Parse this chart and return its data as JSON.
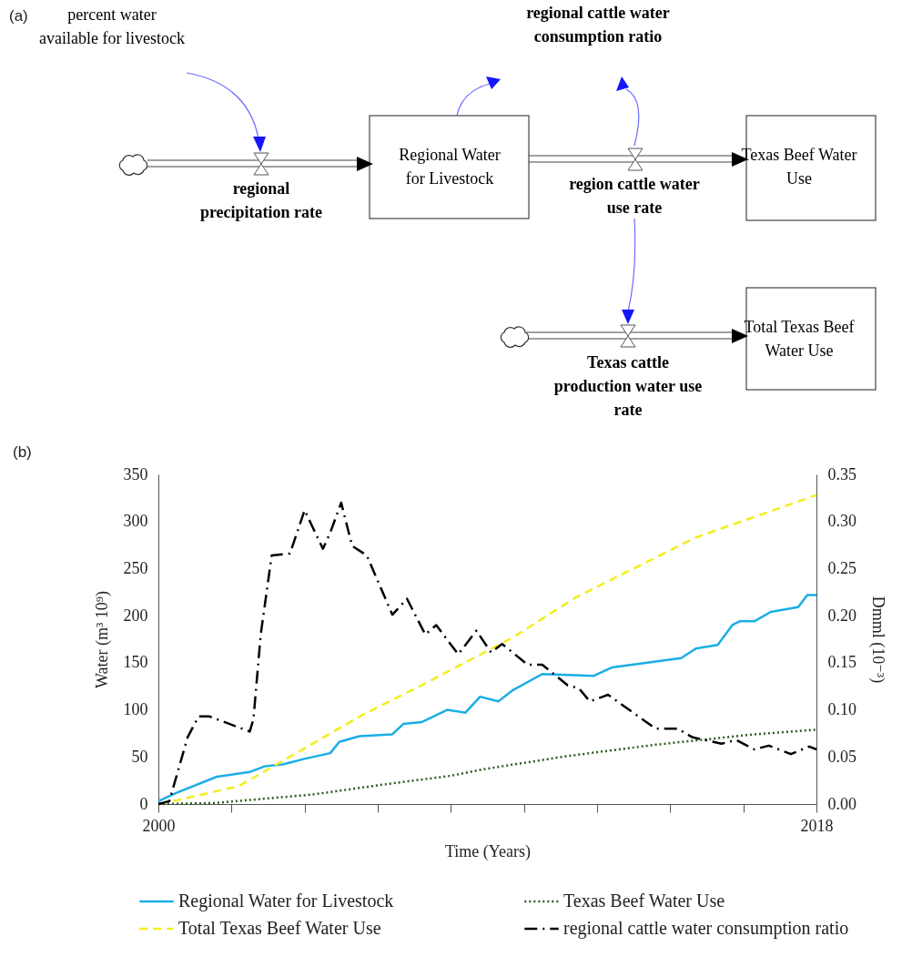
{
  "chart_data": [
    {
      "type": "other",
      "title": "(a)",
      "annotations": [
        "percent water available for livestock",
        "regional precipitation rate",
        "Regional Water for Livestock",
        "regional cattle water consumption ratio",
        "region cattle water use rate",
        "Texas Beef Water Use",
        "Total Texas Beef Water Use",
        "Texas cattle production water use rate"
      ]
    },
    {
      "type": "line",
      "title": "(b)",
      "xlabel": "Time (Years)",
      "ylabel": "Water (m³ 10⁹)",
      "y2label": "Dmml (10⁻³)",
      "xlim": [
        2000,
        2018
      ],
      "xticks": [
        2000,
        {
          "value": 2002,
          "label": null
        },
        {
          "value": 2004,
          "label": null
        },
        {
          "value": 2006,
          "label": null
        },
        {
          "value": 2008,
          "label": null
        },
        {
          "value": 2010,
          "label": null
        },
        {
          "value": 2012,
          "label": null
        },
        {
          "value": 2014,
          "label": null
        },
        {
          "value": 2016,
          "label": null
        },
        2018
      ],
      "ylim": [
        0,
        350
      ],
      "yticks": [
        0,
        50,
        100,
        150,
        200,
        250,
        300,
        350
      ],
      "y2lim": [
        0,
        0.35
      ],
      "y2ticks": [
        {
          "value": 0,
          "label": "0.00"
        },
        {
          "value": 0.05,
          "label": "0.05"
        },
        {
          "value": 0.1,
          "label": "0.10"
        },
        {
          "value": 0.15,
          "label": "0.15"
        },
        {
          "value": 0.2,
          "label": "0.20"
        },
        {
          "value": 0.25,
          "label": "0.25"
        },
        {
          "value": 0.3,
          "label": "0.30"
        },
        {
          "value": 0.35,
          "label": "0.35"
        }
      ],
      "grid": false,
      "legend": "bottom",
      "series": [
        {
          "name": "Regional Water for Livestock",
          "color": "#1aaee6",
          "line_style": "solid",
          "x": [
            2000,
            2000.5,
            2001.6,
            2002.5,
            2002.9,
            2003.4,
            2004,
            2004.7,
            2004.95,
            2005.5,
            2006.4,
            2006.7,
            2007.2,
            2007.9,
            2008.4,
            2008.8,
            2009.3,
            2009.7,
            2010.5,
            2011.9,
            2012.4,
            2014.3,
            2014.7,
            2015.3,
            2015.7,
            2015.9,
            2016.3,
            2016.75,
            2017.5,
            2017.75,
            2018
          ],
          "values": [
            3,
            12,
            29,
            34,
            40,
            42,
            48,
            54,
            66,
            72,
            74,
            85,
            87,
            100,
            97,
            114,
            109,
            121,
            138,
            136,
            145,
            155,
            165,
            169,
            190,
            194,
            194,
            204,
            209,
            222,
            222
          ]
        },
        {
          "name": "Texas Beef Water Use",
          "color": "#2f5a1c",
          "line_style": "dotted",
          "x": [
            2000,
            2001.5,
            2004.2,
            2006.4,
            2008.0,
            2008.9,
            2011.2,
            2013.6,
            2016.3,
            2018
          ],
          "values": [
            0,
            1,
            10,
            22,
            30,
            37,
            51,
            63,
            74,
            79
          ]
        },
        {
          "name": "Total Texas Beef Water Use",
          "color": "#f2ee1c",
          "line_style": "dashed",
          "x": [
            2000.4,
            2002.2,
            2003.5,
            2005.6,
            2007.2,
            2009.7,
            2011.4,
            2014.7,
            2018
          ],
          "values": [
            3,
            19,
            48,
            95,
            126,
            177,
            219,
            283,
            328
          ]
        },
        {
          "name": "regional cattle water consumption ratio",
          "color": "#000000",
          "line_style": "dashdot",
          "axis": "y2",
          "x": [
            2000,
            2000.3,
            2000.8,
            2001.1,
            2001.4,
            2002.5,
            2002.6,
            2002.8,
            2003.1,
            2003.6,
            2004.0,
            2004.5,
            2004.7,
            2005.0,
            2005.3,
            2005.7,
            2006.4,
            2006.8,
            2007.3,
            2007.6,
            2008.2,
            2008.7,
            2009.1,
            2009.4,
            2010.1,
            2010.5,
            2011.2,
            2011.5,
            2011.8,
            2012.3,
            2013.6,
            2014.2,
            2014.6,
            2015.4,
            2015.8,
            2016.3,
            2016.7,
            2017.3,
            2017.8,
            2018
          ],
          "values": [
            0,
            0.003,
            0.071,
            0.093,
            0.093,
            0.077,
            0.09,
            0.18,
            0.264,
            0.266,
            0.312,
            0.271,
            0.288,
            0.32,
            0.274,
            0.264,
            0.201,
            0.218,
            0.18,
            0.19,
            0.159,
            0.184,
            0.161,
            0.17,
            0.148,
            0.148,
            0.126,
            0.123,
            0.109,
            0.116,
            0.08,
            0.08,
            0.071,
            0.064,
            0.068,
            0.058,
            0.062,
            0.053,
            0.061,
            0.058
          ]
        }
      ]
    }
  ]
}
